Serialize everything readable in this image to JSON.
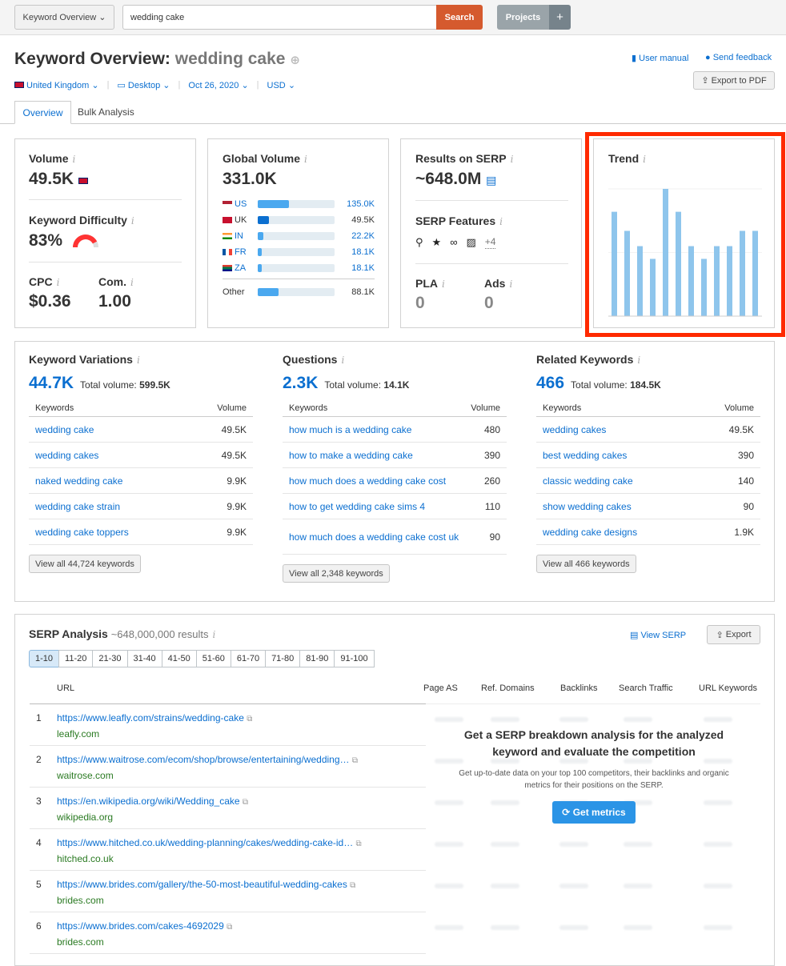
{
  "topbar": {
    "tool_select": "Keyword Overview",
    "search_value": "wedding cake",
    "search_button": "Search",
    "projects_button": "Projects",
    "plus": "+"
  },
  "header": {
    "title_prefix": "Keyword Overview:",
    "title_keyword": "wedding cake",
    "user_manual": "User manual",
    "send_feedback": "Send feedback",
    "export_pdf": "Export to PDF",
    "filters": {
      "country": "United Kingdom",
      "device": "Desktop",
      "date": "Oct 26, 2020",
      "currency": "USD"
    }
  },
  "tabs": [
    "Overview",
    "Bulk Analysis"
  ],
  "volume": {
    "label": "Volume",
    "value": "49.5K"
  },
  "kd": {
    "label": "Keyword Difficulty",
    "value": "83%",
    "percent": 83
  },
  "cpc": {
    "label": "CPC",
    "value": "$0.36"
  },
  "com": {
    "label": "Com.",
    "value": "1.00"
  },
  "global_volume": {
    "label": "Global Volume",
    "value": "331.0K",
    "rows": [
      {
        "code": "US",
        "value": "135.0K",
        "share": 0.41,
        "link": true
      },
      {
        "code": "UK",
        "value": "49.5K",
        "share": 0.15,
        "link": false
      },
      {
        "code": "IN",
        "value": "22.2K",
        "share": 0.07,
        "link": true
      },
      {
        "code": "FR",
        "value": "18.1K",
        "share": 0.055,
        "link": true
      },
      {
        "code": "ZA",
        "value": "18.1K",
        "share": 0.055,
        "link": true
      }
    ],
    "other": {
      "label": "Other",
      "value": "88.1K",
      "share": 0.27
    }
  },
  "serp_results": {
    "label": "Results on SERP",
    "value": "~648.0M",
    "features_label": "SERP Features",
    "features_more": "+4",
    "pla_label": "PLA",
    "pla_value": "0",
    "ads_label": "Ads",
    "ads_value": "0"
  },
  "trend": {
    "label": "Trend"
  },
  "chart_data": {
    "type": "bar",
    "title": "Trend",
    "categories": [
      "1",
      "2",
      "3",
      "4",
      "5",
      "6",
      "7",
      "8",
      "9",
      "10",
      "11",
      "12"
    ],
    "values": [
      0.82,
      0.67,
      0.55,
      0.45,
      1.0,
      0.82,
      0.55,
      0.45,
      0.55,
      0.55,
      0.67,
      0.67
    ],
    "ylim": [
      0,
      1
    ]
  },
  "variations": {
    "label": "Keyword Variations",
    "count": "44.7K",
    "total_label": "Total volume:",
    "total": "599.5K",
    "col_kw": "Keywords",
    "col_vol": "Volume",
    "rows": [
      [
        "wedding cake",
        "49.5K"
      ],
      [
        "wedding cakes",
        "49.5K"
      ],
      [
        "naked wedding cake",
        "9.9K"
      ],
      [
        "wedding cake strain",
        "9.9K"
      ],
      [
        "wedding cake toppers",
        "9.9K"
      ]
    ],
    "view_all": "View all 44,724 keywords"
  },
  "questions": {
    "label": "Questions",
    "count": "2.3K",
    "total_label": "Total volume:",
    "total": "14.1K",
    "col_kw": "Keywords",
    "col_vol": "Volume",
    "rows": [
      [
        "how much is a wedding cake",
        "480"
      ],
      [
        "how to make a wedding cake",
        "390"
      ],
      [
        "how much does a wedding cake cost",
        "260"
      ],
      [
        "how to get wedding cake sims 4",
        "110"
      ],
      [
        "how much does a wedding cake cost uk",
        "90"
      ]
    ],
    "view_all": "View all 2,348 keywords"
  },
  "related": {
    "label": "Related Keywords",
    "count": "466",
    "total_label": "Total volume:",
    "total": "184.5K",
    "col_kw": "Keywords",
    "col_vol": "Volume",
    "rows": [
      [
        "wedding cakes",
        "49.5K"
      ],
      [
        "best wedding cakes",
        "390"
      ],
      [
        "classic wedding cake",
        "140"
      ],
      [
        "show wedding cakes",
        "90"
      ],
      [
        "wedding cake designs",
        "1.9K"
      ]
    ],
    "view_all": "View all 466 keywords"
  },
  "serp": {
    "label": "SERP Analysis",
    "results": "~648,000,000 results",
    "view_serp": "View SERP",
    "export": "Export",
    "pages": [
      "1-10",
      "11-20",
      "21-30",
      "31-40",
      "41-50",
      "51-60",
      "61-70",
      "71-80",
      "81-90",
      "91-100"
    ],
    "columns": [
      "URL",
      "Page AS",
      "Ref. Domains",
      "Backlinks",
      "Search Traffic",
      "URL Keywords"
    ],
    "rows": [
      {
        "n": "1",
        "url": "https://www.leafly.com/strains/wedding-cake",
        "domain": "leafly.com"
      },
      {
        "n": "2",
        "url": "https://www.waitrose.com/ecom/shop/browse/entertaining/wedding…",
        "domain": "waitrose.com"
      },
      {
        "n": "3",
        "url": "https://en.wikipedia.org/wiki/Wedding_cake",
        "domain": "wikipedia.org"
      },
      {
        "n": "4",
        "url": "https://www.hitched.co.uk/wedding-planning/cakes/wedding-cake-id…",
        "domain": "hitched.co.uk"
      },
      {
        "n": "5",
        "url": "https://www.brides.com/gallery/the-50-most-beautiful-wedding-cakes",
        "domain": "brides.com"
      },
      {
        "n": "6",
        "url": "https://www.brides.com/cakes-4692029",
        "domain": "brides.com"
      }
    ],
    "promo_title": "Get a SERP breakdown analysis for the analyzed keyword and evaluate the competition",
    "promo_text": "Get up-to-date data on your top 100 competitors, their backlinks and organic metrics for their positions on the SERP.",
    "get_metrics": "Get metrics"
  },
  "colors": {
    "accent": "#0b6fd0",
    "search": "#d55a2e",
    "trend": "#8ec5ec",
    "highlight": "#ff2a00"
  }
}
